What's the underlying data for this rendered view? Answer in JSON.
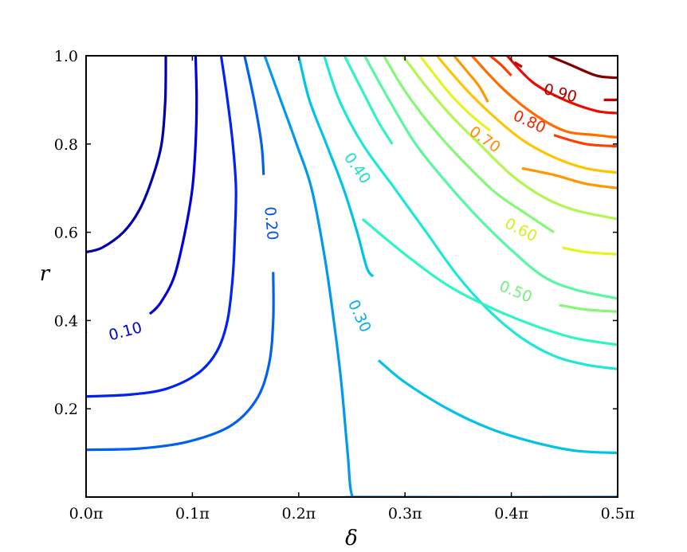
{
  "chart_data": {
    "type": "contour",
    "title": "",
    "xlabel": "δ",
    "ylabel": "r",
    "xlim": [
      0,
      0.5
    ],
    "ylim": [
      0,
      1.0
    ],
    "x_ticks": [
      {
        "value": 0.0,
        "label": "0.0π"
      },
      {
        "value": 0.1,
        "label": "0.1π"
      },
      {
        "value": 0.2,
        "label": "0.2π"
      },
      {
        "value": 0.3,
        "label": "0.3π"
      },
      {
        "value": 0.4,
        "label": "0.4π"
      },
      {
        "value": 0.5,
        "label": "0.5π"
      }
    ],
    "y_ticks": [
      {
        "value": 0.2,
        "label": "0.2"
      },
      {
        "value": 0.4,
        "label": "0.4"
      },
      {
        "value": 0.6,
        "label": "0.6"
      },
      {
        "value": 0.8,
        "label": "0.8"
      },
      {
        "value": 1.0,
        "label": "1.0"
      }
    ],
    "grid": false,
    "levels": [
      {
        "level": 0.05,
        "color": "#0000a8",
        "points": [
          [
            0.075,
            1.0
          ],
          [
            0.0745,
            0.9
          ],
          [
            0.071,
            0.8
          ],
          [
            0.062,
            0.72
          ],
          [
            0.05,
            0.65
          ],
          [
            0.035,
            0.6
          ],
          [
            0.015,
            0.565
          ],
          [
            0.0,
            0.555
          ]
        ]
      },
      {
        "level": 0.1,
        "color": "#0000dd",
        "points": [
          [
            0.103,
            1.0
          ],
          [
            0.104,
            0.9
          ],
          [
            0.103,
            0.8
          ],
          [
            0.1,
            0.7
          ],
          [
            0.093,
            0.6
          ],
          [
            0.083,
            0.5
          ],
          [
            0.07,
            0.44
          ],
          [
            0.06,
            0.415
          ]
        ],
        "label": "0.10",
        "label_at": [
          0.037,
          0.375
        ],
        "label_angle": -15,
        "label_color": "#0000dd"
      },
      {
        "level": 0.1,
        "color": "#0000dd",
        "points": [
          [
            0.0,
            0.373
          ],
          [
            0.0,
            0.372
          ]
        ]
      },
      {
        "level": 0.15,
        "color": "#0022f5",
        "points": [
          [
            0.127,
            1.0
          ],
          [
            0.133,
            0.9
          ],
          [
            0.138,
            0.8
          ],
          [
            0.141,
            0.7
          ],
          [
            0.14,
            0.6
          ],
          [
            0.138,
            0.5
          ],
          [
            0.133,
            0.4
          ],
          [
            0.123,
            0.33
          ],
          [
            0.105,
            0.28
          ],
          [
            0.075,
            0.245
          ],
          [
            0.04,
            0.232
          ],
          [
            0.0,
            0.228
          ]
        ]
      },
      {
        "level": 0.2,
        "color": "#0060f0",
        "points": [
          [
            0.149,
            1.0
          ],
          [
            0.158,
            0.9
          ],
          [
            0.165,
            0.8
          ],
          [
            0.167,
            0.73
          ]
        ],
        "label": "0.20",
        "label_at": [
          0.174,
          0.62
        ],
        "label_angle": 85,
        "label_color": "#0050ee"
      },
      {
        "level": 0.2,
        "color": "#0060f0",
        "points": [
          [
            0.176,
            0.51
          ],
          [
            0.176,
            0.4
          ],
          [
            0.172,
            0.3
          ],
          [
            0.16,
            0.22
          ],
          [
            0.135,
            0.16
          ],
          [
            0.095,
            0.125
          ],
          [
            0.05,
            0.11
          ],
          [
            0.0,
            0.107
          ]
        ]
      },
      {
        "level": 0.25,
        "color": "#0099ee",
        "points": [
          [
            0.168,
            1.0
          ],
          [
            0.183,
            0.9
          ],
          [
            0.198,
            0.8
          ],
          [
            0.212,
            0.7
          ],
          [
            0.224,
            0.55
          ],
          [
            0.233,
            0.4
          ],
          [
            0.24,
            0.26
          ],
          [
            0.246,
            0.1
          ],
          [
            0.25,
            0.005
          ],
          [
            0.26,
            0.0
          ],
          [
            0.5,
            0.0
          ]
        ]
      },
      {
        "level": 0.3,
        "color": "#00c3e8",
        "points": [
          [
            0.2,
            1.0
          ],
          [
            0.21,
            0.9
          ],
          [
            0.226,
            0.8
          ],
          [
            0.242,
            0.7
          ],
          [
            0.255,
            0.6
          ],
          [
            0.264,
            0.52
          ],
          [
            0.27,
            0.5
          ]
        ],
        "label": "0.30",
        "label_at": [
          0.257,
          0.41
        ],
        "label_angle": 65,
        "label_color": "#00b0e6"
      },
      {
        "level": 0.3,
        "color": "#00c3e8",
        "points": [
          [
            0.275,
            0.31
          ],
          [
            0.3,
            0.26
          ],
          [
            0.34,
            0.2
          ],
          [
            0.38,
            0.155
          ],
          [
            0.42,
            0.125
          ],
          [
            0.46,
            0.105
          ],
          [
            0.5,
            0.1
          ]
        ]
      },
      {
        "level": 0.35,
        "color": "#1de8d8",
        "points": [
          [
            0.224,
            1.0
          ],
          [
            0.238,
            0.9
          ],
          [
            0.26,
            0.8
          ],
          [
            0.29,
            0.7
          ],
          [
            0.32,
            0.6
          ],
          [
            0.35,
            0.5
          ],
          [
            0.38,
            0.42
          ],
          [
            0.41,
            0.36
          ],
          [
            0.44,
            0.32
          ],
          [
            0.47,
            0.3
          ],
          [
            0.5,
            0.29
          ]
        ]
      },
      {
        "level": 0.4,
        "color": "#2ff5c4",
        "points": [
          [
            0.243,
            1.0
          ],
          [
            0.26,
            0.92
          ],
          [
            0.275,
            0.85
          ],
          [
            0.288,
            0.8
          ]
        ],
        "label": "0.40",
        "label_at": [
          0.255,
          0.745
        ],
        "label_angle": 55,
        "label_color": "#1fe0c8"
      },
      {
        "level": 0.4,
        "color": "#2ff5c4",
        "points": [
          [
            0.26,
            0.63
          ],
          [
            0.3,
            0.55
          ],
          [
            0.34,
            0.48
          ],
          [
            0.38,
            0.43
          ],
          [
            0.42,
            0.39
          ],
          [
            0.46,
            0.36
          ],
          [
            0.5,
            0.345
          ]
        ]
      },
      {
        "level": 0.45,
        "color": "#58f7a0",
        "points": [
          [
            0.262,
            1.0
          ],
          [
            0.285,
            0.9
          ],
          [
            0.31,
            0.8
          ],
          [
            0.34,
            0.71
          ],
          [
            0.37,
            0.63
          ],
          [
            0.4,
            0.56
          ],
          [
            0.43,
            0.5
          ],
          [
            0.46,
            0.47
          ],
          [
            0.5,
            0.45
          ]
        ]
      },
      {
        "level": 0.5,
        "color": "#86f777",
        "points": [
          [
            0.28,
            1.0
          ],
          [
            0.3,
            0.92
          ],
          [
            0.325,
            0.84
          ],
          [
            0.355,
            0.76
          ],
          [
            0.385,
            0.69
          ],
          [
            0.415,
            0.64
          ],
          [
            0.44,
            0.6
          ]
        ],
        "label": "0.50",
        "label_at": [
          0.404,
          0.465
        ],
        "label_angle": 22,
        "label_color": "#74f080"
      },
      {
        "level": 0.5,
        "color": "#86f777",
        "points": [
          [
            0.445,
            0.435
          ],
          [
            0.47,
            0.425
          ],
          [
            0.5,
            0.42
          ]
        ]
      },
      {
        "level": 0.55,
        "color": "#b2f652",
        "points": [
          [
            0.298,
            1.0
          ],
          [
            0.32,
            0.93
          ],
          [
            0.345,
            0.86
          ],
          [
            0.37,
            0.8
          ],
          [
            0.4,
            0.73
          ],
          [
            0.43,
            0.68
          ],
          [
            0.46,
            0.65
          ],
          [
            0.5,
            0.63
          ]
        ]
      },
      {
        "level": 0.6,
        "color": "#e5f51c",
        "points": [
          [
            0.314,
            1.0
          ],
          [
            0.34,
            0.92
          ],
          [
            0.36,
            0.87
          ],
          [
            0.38,
            0.83
          ]
        ],
        "label": "0.60",
        "label_at": [
          0.409,
          0.605
        ],
        "label_angle": 27,
        "label_color": "#d6ef20"
      },
      {
        "level": 0.6,
        "color": "#e5f51c",
        "points": [
          [
            0.448,
            0.565
          ],
          [
            0.47,
            0.555
          ],
          [
            0.5,
            0.55
          ]
        ]
      },
      {
        "level": 0.65,
        "color": "#ffc400",
        "points": [
          [
            0.33,
            1.0
          ],
          [
            0.355,
            0.93
          ],
          [
            0.38,
            0.87
          ],
          [
            0.41,
            0.81
          ],
          [
            0.44,
            0.77
          ],
          [
            0.47,
            0.745
          ],
          [
            0.5,
            0.735
          ]
        ]
      },
      {
        "level": 0.7,
        "color": "#ff9800",
        "points": [
          [
            0.346,
            1.0
          ],
          [
            0.36,
            0.96
          ],
          [
            0.37,
            0.93
          ],
          [
            0.378,
            0.895
          ]
        ],
        "label": "0.70",
        "label_at": [
          0.375,
          0.81
        ],
        "label_angle": 35,
        "label_color": "#ff8c00"
      },
      {
        "level": 0.7,
        "color": "#ff9800",
        "points": [
          [
            0.41,
            0.745
          ],
          [
            0.44,
            0.73
          ],
          [
            0.47,
            0.71
          ],
          [
            0.5,
            0.7
          ]
        ]
      },
      {
        "level": 0.75,
        "color": "#ff6c00",
        "points": [
          [
            0.363,
            1.0
          ],
          [
            0.39,
            0.93
          ],
          [
            0.42,
            0.87
          ],
          [
            0.45,
            0.83
          ],
          [
            0.48,
            0.82
          ],
          [
            0.5,
            0.815
          ]
        ]
      },
      {
        "level": 0.8,
        "color": "#ff3d00",
        "points": [
          [
            0.38,
            1.0
          ],
          [
            0.39,
            0.98
          ],
          [
            0.4,
            0.955
          ]
        ],
        "label": "0.80",
        "label_at": [
          0.417,
          0.85
        ],
        "label_angle": 25,
        "label_color": "#f02a00"
      },
      {
        "level": 0.8,
        "color": "#ff3d00",
        "points": [
          [
            0.44,
            0.82
          ],
          [
            0.47,
            0.8
          ],
          [
            0.5,
            0.795
          ]
        ]
      },
      {
        "level": 0.85,
        "color": "#ee0a00",
        "points": [
          [
            0.396,
            1.0
          ],
          [
            0.42,
            0.94
          ],
          [
            0.45,
            0.9
          ],
          [
            0.48,
            0.875
          ],
          [
            0.5,
            0.87
          ]
        ]
      },
      {
        "level": 0.9,
        "color": "#c80000",
        "points": [
          [
            0.403,
            0.985
          ],
          [
            0.41,
            0.975
          ]
        ],
        "label": "0.90",
        "label_at": [
          0.446,
          0.915
        ],
        "label_angle": 15,
        "label_color": "#b00000"
      },
      {
        "level": 0.9,
        "color": "#c80000",
        "points": [
          [
            0.487,
            0.9
          ],
          [
            0.5,
            0.9
          ]
        ]
      },
      {
        "level": 0.95,
        "color": "#800000",
        "points": [
          [
            0.435,
            1.0
          ],
          [
            0.455,
            0.98
          ],
          [
            0.48,
            0.955
          ],
          [
            0.5,
            0.95
          ]
        ]
      }
    ]
  }
}
